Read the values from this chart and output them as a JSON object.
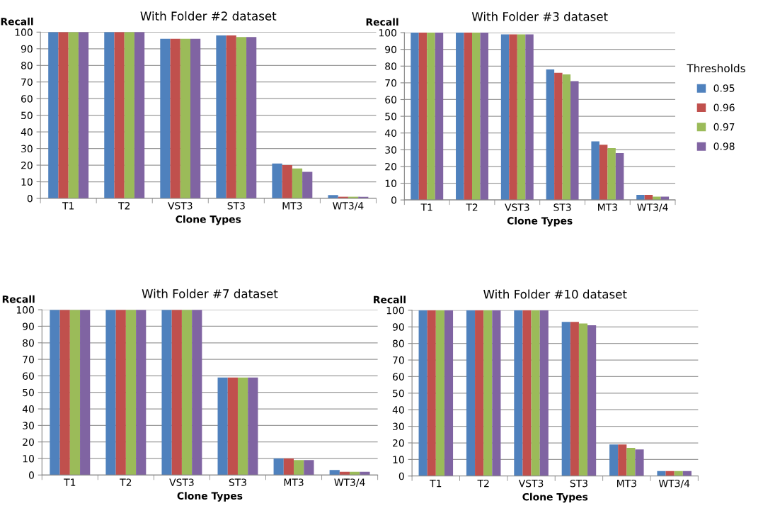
{
  "chart_data": [
    {
      "type": "bar",
      "title": "With Folder #2 dataset",
      "xlabel": "Clone Types",
      "ylabel": "Recall",
      "categories": [
        "T1",
        "T2",
        "VST3",
        "ST3",
        "MT3",
        "WT3/4"
      ],
      "ylim": [
        0,
        100
      ],
      "yticks": [
        0,
        10,
        20,
        30,
        40,
        50,
        60,
        70,
        80,
        90,
        100
      ],
      "grid": "y",
      "series": [
        {
          "color": "#4f81bd",
          "values": [
            100,
            100,
            96,
            98,
            21,
            2
          ]
        },
        {
          "color": "#c0504d",
          "values": [
            100,
            100,
            96,
            98,
            20,
            1
          ]
        },
        {
          "color": "#9bbb59",
          "values": [
            100,
            100,
            96,
            97,
            18,
            1
          ]
        },
        {
          "color": "#8064a2",
          "values": [
            100,
            100,
            96,
            97,
            16,
            1
          ]
        }
      ]
    },
    {
      "type": "bar",
      "title": "With Folder #3 dataset",
      "xlabel": "Clone Types",
      "ylabel": "Recall",
      "categories": [
        "T1",
        "T2",
        "VST3",
        "ST3",
        "MT3",
        "WT3/4"
      ],
      "ylim": [
        0,
        100
      ],
      "yticks": [
        0,
        10,
        20,
        30,
        40,
        50,
        60,
        70,
        80,
        90,
        100
      ],
      "grid": "y",
      "legend": "right",
      "legend_title": "Thresholds",
      "series": [
        {
          "name": "0.95",
          "color": "#4f81bd",
          "values": [
            100,
            100,
            99,
            78,
            35,
            3
          ]
        },
        {
          "name": "0.96",
          "color": "#c0504d",
          "values": [
            100,
            100,
            99,
            76,
            33,
            3
          ]
        },
        {
          "name": "0.97",
          "color": "#9bbb59",
          "values": [
            100,
            100,
            99,
            75,
            31,
            2
          ]
        },
        {
          "name": "0.98",
          "color": "#8064a2",
          "values": [
            100,
            100,
            99,
            71,
            28,
            2
          ]
        }
      ]
    },
    {
      "type": "bar",
      "title": "With Folder #7 dataset",
      "xlabel": "Clone Types",
      "ylabel": "Recall",
      "categories": [
        "T1",
        "T2",
        "VST3",
        "ST3",
        "MT3",
        "WT3/4"
      ],
      "ylim": [
        0,
        100
      ],
      "yticks": [
        0,
        10,
        20,
        30,
        40,
        50,
        60,
        70,
        80,
        90,
        100
      ],
      "grid": "y",
      "series": [
        {
          "color": "#4f81bd",
          "values": [
            100,
            100,
            100,
            59,
            10,
            3
          ]
        },
        {
          "color": "#c0504d",
          "values": [
            100,
            100,
            100,
            59,
            10,
            2
          ]
        },
        {
          "color": "#9bbb59",
          "values": [
            100,
            100,
            100,
            59,
            9,
            2
          ]
        },
        {
          "color": "#8064a2",
          "values": [
            100,
            100,
            100,
            59,
            9,
            2
          ]
        }
      ]
    },
    {
      "type": "bar",
      "title": "With Folder #10 dataset",
      "xlabel": "Clone Types",
      "ylabel": "Recall",
      "categories": [
        "T1",
        "T2",
        "VST3",
        "ST3",
        "MT3",
        "WT3/4"
      ],
      "ylim": [
        0,
        100
      ],
      "yticks": [
        0,
        10,
        20,
        30,
        40,
        50,
        60,
        70,
        80,
        90,
        100
      ],
      "grid": "y",
      "series": [
        {
          "color": "#4f81bd",
          "values": [
            100,
            100,
            100,
            93,
            19,
            3
          ]
        },
        {
          "color": "#c0504d",
          "values": [
            100,
            100,
            100,
            93,
            19,
            3
          ]
        },
        {
          "color": "#9bbb59",
          "values": [
            100,
            100,
            100,
            92,
            17,
            3
          ]
        },
        {
          "color": "#8064a2",
          "values": [
            100,
            100,
            100,
            91,
            16,
            3
          ]
        }
      ]
    }
  ]
}
